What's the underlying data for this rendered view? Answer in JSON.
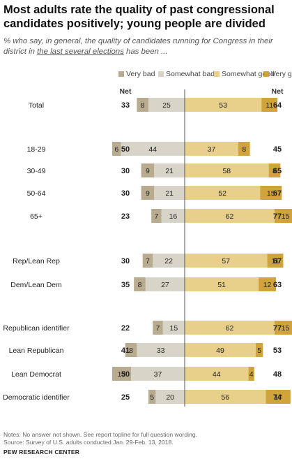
{
  "title": "Most adults rate the quality of past congressional candidates positively; young people are divided",
  "subtitle": {
    "part1": "% who say, in general, the quality of candidates running for Congress in their district in ",
    "underlined": "the last several elections",
    "part2": " has been ..."
  },
  "notes": {
    "line1": "Notes: No answer not shown. See report topline for full question wording.",
    "line2": "Source: Survey of U.S. adults conducted Jan. 29-Feb. 13, 2018."
  },
  "brand": "PEW RESEARCH CENTER",
  "colors": {
    "very_bad": "#b8ab8f",
    "somewhat_bad": "#d8d4c8",
    "somewhat_good": "#e8cf8a",
    "very_good": "#d0a43a",
    "axis": "#555555"
  },
  "chart_data": {
    "type": "bar",
    "orientation": "horizontal diverging",
    "legend": [
      "Very bad",
      "Somewhat bad",
      "Somewhat good",
      "Very good"
    ],
    "net_header_left": "Net",
    "net_header_right": "Net",
    "categories": [
      "Total",
      "18-29",
      "30-49",
      "50-64",
      "65+",
      "Rep/Lean Rep",
      "Dem/Lean Dem",
      "Republican identifier",
      "Lean Republican",
      "Lean Democrat",
      "Democratic identifier"
    ],
    "series": [
      {
        "name": "Very bad",
        "values": [
          8,
          6,
          9,
          9,
          7,
          7,
          8,
          7,
          8,
          13,
          5
        ]
      },
      {
        "name": "Somewhat bad",
        "values": [
          25,
          44,
          21,
          21,
          16,
          22,
          27,
          15,
          33,
          37,
          20
        ]
      },
      {
        "name": "Somewhat good",
        "values": [
          53,
          37,
          58,
          52,
          62,
          57,
          51,
          62,
          49,
          44,
          56
        ]
      },
      {
        "name": "Very good",
        "values": [
          11,
          8,
          8,
          15,
          15,
          11,
          12,
          15,
          5,
          4,
          17
        ]
      }
    ],
    "net_negative": [
      33,
      50,
      30,
      30,
      23,
      30,
      35,
      22,
      41,
      50,
      25
    ],
    "net_positive": [
      64,
      45,
      65,
      67,
      77,
      67,
      63,
      77,
      53,
      48,
      74
    ]
  }
}
